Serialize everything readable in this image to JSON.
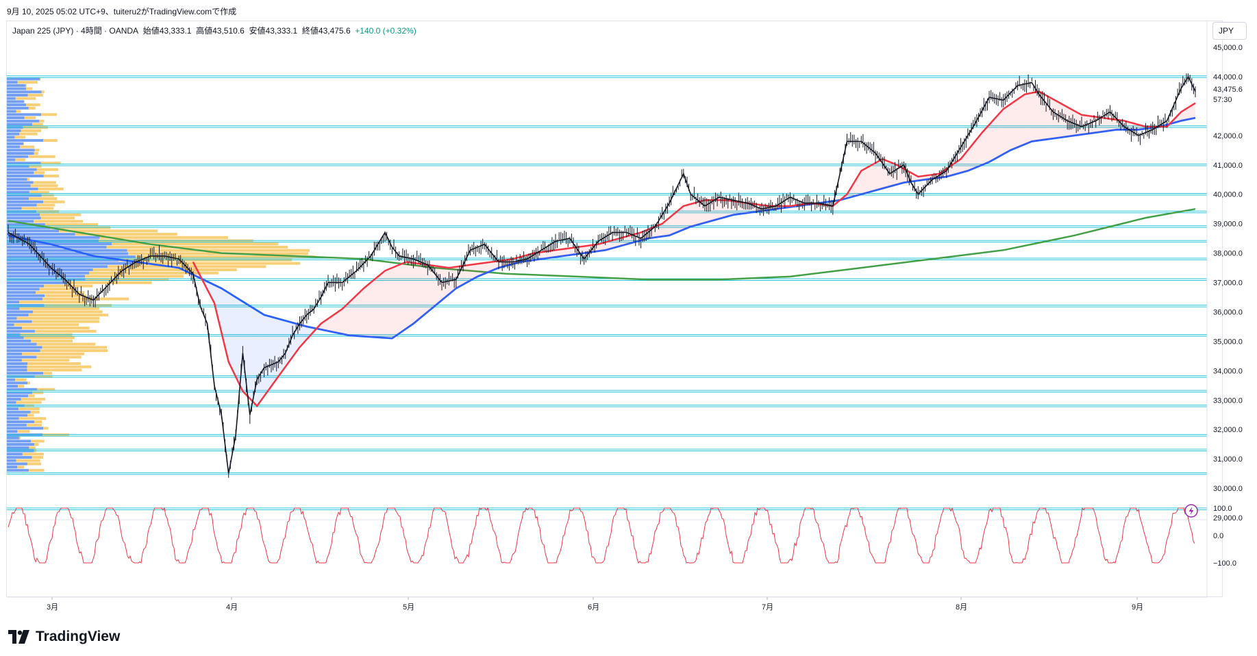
{
  "header": {
    "meta": "9月 10, 2025 05:02 UTC+9、tuiteru2がTradingView.comで作成"
  },
  "legend": {
    "symbol": "Japan 225 (JPY) · 4時間 · OANDA",
    "open": "始値43,333.1",
    "high": "高値43,510.6",
    "low": "安値43,333.1",
    "close": "終値43,475.6",
    "change": "+140.0 (+0.32%)"
  },
  "currency": "JPY",
  "brand": {
    "name": "TradingView",
    "logo_icon": "tradingview-logo-icon"
  },
  "price_axis": {
    "ticks": [
      "45,000.0",
      "44,000.0",
      "42,000.0",
      "41,000.0",
      "40,000.0",
      "39,000.0",
      "38,000.0",
      "37,000.0",
      "36,000.0",
      "35,000.0",
      "34,000.0",
      "33,000.0",
      "32,000.0",
      "31,000.0",
      "30,000.0",
      "29,000.0"
    ],
    "last_price": "43,475.6",
    "countdown": "57:30"
  },
  "oscillator_axis": {
    "ticks": [
      "100.0",
      "0.0",
      "−100.0"
    ]
  },
  "time_axis": {
    "ticks": [
      "3月",
      "4月",
      "5月",
      "6月",
      "7月",
      "8月",
      "9月"
    ]
  },
  "colors": {
    "candle": "#131722",
    "ema_fast": "#f23645",
    "ema_slow": "#2962ff",
    "sma_long": "#43a047",
    "hline": "#26c6da",
    "volume_profile_up": "#5b8def",
    "volume_profile_down": "#f7c55f",
    "oscillator": "#f23645"
  },
  "chart_data": {
    "type": "line",
    "x": [
      "3月",
      "4月",
      "5月",
      "6月",
      "7月",
      "8月",
      "9月"
    ],
    "ylim": [
      29000,
      45000
    ],
    "series": [],
    "price_path": [
      [
        0,
        38700
      ],
      [
        3,
        38300
      ],
      [
        6,
        37500
      ],
      [
        8,
        37100
      ],
      [
        10,
        36600
      ],
      [
        12,
        36400
      ],
      [
        14,
        36900
      ],
      [
        16,
        37400
      ],
      [
        18,
        37700
      ],
      [
        20,
        37900
      ],
      [
        22,
        37900
      ],
      [
        24,
        37800
      ],
      [
        26,
        37300
      ],
      [
        27,
        36200
      ],
      [
        28,
        35600
      ],
      [
        29,
        33500
      ],
      [
        30,
        32500
      ],
      [
        31,
        30500
      ],
      [
        32,
        31800
      ],
      [
        33,
        34600
      ],
      [
        34,
        32500
      ],
      [
        35,
        33700
      ],
      [
        36,
        34100
      ],
      [
        37,
        34200
      ],
      [
        38,
        34300
      ],
      [
        39,
        34600
      ],
      [
        40,
        35200
      ],
      [
        41,
        35600
      ],
      [
        42,
        35900
      ],
      [
        43,
        36100
      ],
      [
        44,
        36500
      ],
      [
        45,
        37000
      ],
      [
        47,
        37000
      ],
      [
        49,
        37400
      ],
      [
        51,
        37900
      ],
      [
        53,
        38700
      ],
      [
        54,
        38200
      ],
      [
        55,
        37900
      ],
      [
        57,
        37800
      ],
      [
        59,
        37600
      ],
      [
        61,
        37000
      ],
      [
        63,
        37100
      ],
      [
        65,
        38100
      ],
      [
        67,
        38300
      ],
      [
        69,
        37700
      ],
      [
        71,
        37700
      ],
      [
        73,
        37800
      ],
      [
        75,
        38100
      ],
      [
        77,
        38400
      ],
      [
        79,
        38500
      ],
      [
        81,
        37800
      ],
      [
        83,
        38400
      ],
      [
        85,
        38700
      ],
      [
        87,
        38700
      ],
      [
        89,
        38500
      ],
      [
        91,
        38900
      ],
      [
        93,
        39700
      ],
      [
        95,
        40700
      ],
      [
        96,
        40000
      ],
      [
        98,
        39600
      ],
      [
        100,
        39900
      ],
      [
        102,
        39800
      ],
      [
        104,
        39700
      ],
      [
        106,
        39500
      ],
      [
        108,
        39600
      ],
      [
        110,
        39900
      ],
      [
        112,
        39700
      ],
      [
        114,
        39700
      ],
      [
        116,
        39600
      ],
      [
        118,
        41800
      ],
      [
        120,
        41800
      ],
      [
        122,
        41400
      ],
      [
        124,
        40700
      ],
      [
        126,
        41000
      ],
      [
        127,
        40400
      ],
      [
        128,
        40000
      ],
      [
        130,
        40500
      ],
      [
        132,
        40800
      ],
      [
        134,
        41600
      ],
      [
        136,
        42400
      ],
      [
        138,
        43300
      ],
      [
        140,
        43200
      ],
      [
        142,
        43700
      ],
      [
        144,
        43800
      ],
      [
        145,
        43400
      ],
      [
        147,
        42800
      ],
      [
        149,
        42500
      ],
      [
        151,
        42300
      ],
      [
        153,
        42500
      ],
      [
        155,
        42800
      ],
      [
        157,
        42300
      ],
      [
        159,
        42000
      ],
      [
        161,
        42200
      ],
      [
        163,
        42500
      ],
      [
        165,
        43600
      ],
      [
        166,
        44000
      ],
      [
        167,
        43500
      ]
    ],
    "ema_fast_path": [
      [
        26,
        37700
      ],
      [
        29,
        36300
      ],
      [
        31,
        34300
      ],
      [
        33,
        33300
      ],
      [
        35,
        32800
      ],
      [
        38,
        33800
      ],
      [
        41,
        34800
      ],
      [
        44,
        35600
      ],
      [
        47,
        36100
      ],
      [
        50,
        36800
      ],
      [
        53,
        37400
      ],
      [
        56,
        37700
      ],
      [
        59,
        37600
      ],
      [
        62,
        37500
      ],
      [
        65,
        37600
      ],
      [
        68,
        37700
      ],
      [
        71,
        37800
      ],
      [
        74,
        38000
      ],
      [
        77,
        38100
      ],
      [
        80,
        38200
      ],
      [
        83,
        38300
      ],
      [
        86,
        38500
      ],
      [
        89,
        38700
      ],
      [
        92,
        39000
      ],
      [
        95,
        39600
      ],
      [
        98,
        39800
      ],
      [
        101,
        39800
      ],
      [
        104,
        39700
      ],
      [
        107,
        39600
      ],
      [
        110,
        39600
      ],
      [
        113,
        39700
      ],
      [
        116,
        39600
      ],
      [
        118,
        40000
      ],
      [
        120,
        40800
      ],
      [
        123,
        41200
      ],
      [
        125,
        41000
      ],
      [
        128,
        40600
      ],
      [
        131,
        40700
      ],
      [
        134,
        41200
      ],
      [
        137,
        42100
      ],
      [
        140,
        42900
      ],
      [
        143,
        43400
      ],
      [
        145,
        43500
      ],
      [
        148,
        43100
      ],
      [
        151,
        42700
      ],
      [
        154,
        42600
      ],
      [
        157,
        42500
      ],
      [
        160,
        42300
      ],
      [
        163,
        42300
      ],
      [
        165,
        42800
      ],
      [
        167,
        43100
      ]
    ],
    "ema_slow_path": [
      [
        0,
        38600
      ],
      [
        6,
        38300
      ],
      [
        12,
        37900
      ],
      [
        18,
        37700
      ],
      [
        24,
        37500
      ],
      [
        30,
        36800
      ],
      [
        36,
        35900
      ],
      [
        42,
        35500
      ],
      [
        48,
        35200
      ],
      [
        54,
        35100
      ],
      [
        57,
        35600
      ],
      [
        60,
        36200
      ],
      [
        63,
        36800
      ],
      [
        66,
        37200
      ],
      [
        69,
        37500
      ],
      [
        72,
        37700
      ],
      [
        75,
        37800
      ],
      [
        78,
        37900
      ],
      [
        81,
        38000
      ],
      [
        84,
        38100
      ],
      [
        87,
        38300
      ],
      [
        90,
        38500
      ],
      [
        93,
        38600
      ],
      [
        96,
        38900
      ],
      [
        99,
        39100
      ],
      [
        102,
        39300
      ],
      [
        105,
        39400
      ],
      [
        108,
        39500
      ],
      [
        111,
        39600
      ],
      [
        114,
        39700
      ],
      [
        117,
        39800
      ],
      [
        120,
        40000
      ],
      [
        123,
        40200
      ],
      [
        126,
        40400
      ],
      [
        129,
        40500
      ],
      [
        132,
        40600
      ],
      [
        135,
        40800
      ],
      [
        138,
        41100
      ],
      [
        141,
        41500
      ],
      [
        144,
        41800
      ],
      [
        147,
        41900
      ],
      [
        150,
        42000
      ],
      [
        153,
        42100
      ],
      [
        156,
        42200
      ],
      [
        159,
        42200
      ],
      [
        162,
        42300
      ],
      [
        165,
        42500
      ],
      [
        167,
        42600
      ]
    ],
    "sma_long_path": [
      [
        0,
        39100
      ],
      [
        10,
        38700
      ],
      [
        20,
        38300
      ],
      [
        30,
        38000
      ],
      [
        40,
        37900
      ],
      [
        50,
        37800
      ],
      [
        60,
        37500
      ],
      [
        70,
        37300
      ],
      [
        80,
        37200
      ],
      [
        90,
        37100
      ],
      [
        100,
        37100
      ],
      [
        110,
        37200
      ],
      [
        120,
        37500
      ],
      [
        130,
        37800
      ],
      [
        140,
        38100
      ],
      [
        150,
        38600
      ],
      [
        160,
        39200
      ],
      [
        167,
        39500
      ]
    ],
    "hlines": [
      44000,
      42300,
      41000,
      40000,
      39400,
      38900,
      38400,
      37800,
      37100,
      36200,
      35200,
      33800,
      33300,
      32800,
      31800,
      31300,
      30500,
      29300
    ],
    "oscillator": {
      "ylim": [
        -100,
        100
      ]
    }
  }
}
